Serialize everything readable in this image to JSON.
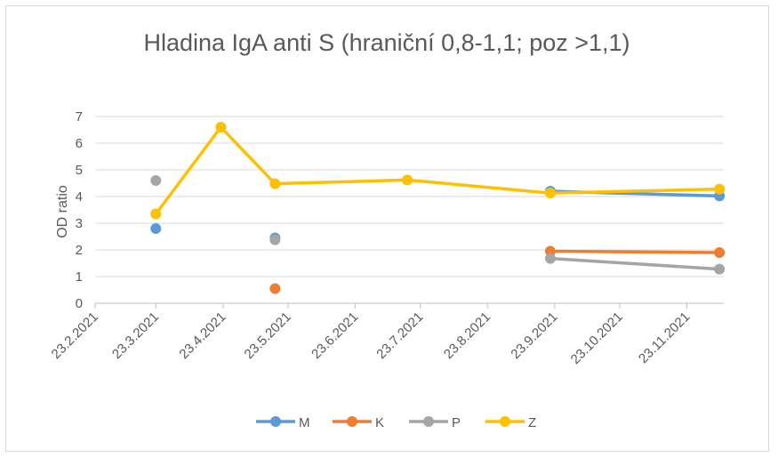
{
  "chart_data": {
    "type": "line",
    "title": "Hladina IgA anti S (hraniční 0,8-1,1; poz >1,1)",
    "xlabel": "",
    "ylabel": "OD ratio",
    "ylim": [
      0,
      7
    ],
    "yticks": [
      "0",
      "1",
      "2",
      "3",
      "4",
      "5",
      "6",
      "7"
    ],
    "xlim": [
      "2021-02-23",
      "2021-12-10"
    ],
    "xticks": [
      {
        "date": "2021-02-23",
        "label": "23.2.2021"
      },
      {
        "date": "2021-03-23",
        "label": "23.3.2021"
      },
      {
        "date": "2021-04-23",
        "label": "23.4.2021"
      },
      {
        "date": "2021-05-23",
        "label": "23.5.2021"
      },
      {
        "date": "2021-06-23",
        "label": "23.6.2021"
      },
      {
        "date": "2021-07-23",
        "label": "23.7.2021"
      },
      {
        "date": "2021-08-23",
        "label": "23.8.2021"
      },
      {
        "date": "2021-09-23",
        "label": "23.9.2021"
      },
      {
        "date": "2021-10-23",
        "label": "23.10.2021"
      },
      {
        "date": "2021-11-23",
        "label": "23.11.2021"
      }
    ],
    "grid": true,
    "legend_position": "bottom",
    "series": [
      {
        "name": "M",
        "color": "#5b9bd5",
        "segments": [
          [
            [
              "2021-03-23",
              2.8
            ]
          ],
          [
            [
              "2021-05-17",
              2.45
            ]
          ],
          [
            [
              "2021-09-21",
              4.2
            ],
            [
              "2021-12-08",
              4.02
            ]
          ]
        ]
      },
      {
        "name": "K",
        "color": "#ed7d31",
        "segments": [
          [
            [
              "2021-05-17",
              0.55
            ]
          ],
          [
            [
              "2021-09-21",
              1.95
            ],
            [
              "2021-12-08",
              1.9
            ]
          ]
        ]
      },
      {
        "name": "P",
        "color": "#a5a5a5",
        "segments": [
          [
            [
              "2021-03-23",
              4.6
            ]
          ],
          [
            [
              "2021-05-17",
              2.38
            ]
          ],
          [
            [
              "2021-09-21",
              1.68
            ],
            [
              "2021-12-08",
              1.28
            ]
          ]
        ]
      },
      {
        "name": "Z",
        "color": "#ffc000",
        "segments": [
          [
            [
              "2021-03-23",
              3.35
            ],
            [
              "2021-04-22",
              6.6
            ],
            [
              "2021-05-17",
              4.48
            ],
            [
              "2021-07-17",
              4.62
            ],
            [
              "2021-09-21",
              4.13
            ],
            [
              "2021-12-08",
              4.28
            ]
          ]
        ]
      }
    ]
  }
}
